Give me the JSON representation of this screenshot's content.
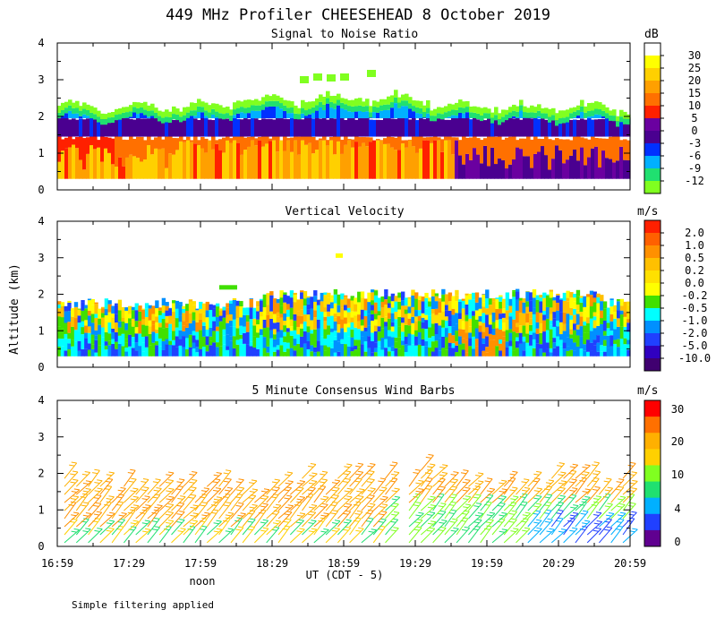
{
  "title": "449 MHz Profiler CHEESEHEAD  8 October 2019",
  "ylabel": "Altitude (km)",
  "xlabel": "UT  (CDT - 5)",
  "x_ticks": [
    "16:59",
    "17:29",
    "17:59",
    "18:29",
    "18:59",
    "19:29",
    "19:59",
    "20:29",
    "20:59"
  ],
  "noon_label": "noon",
  "footer": "Simple filtering applied",
  "chart_data": [
    {
      "type": "heatmap",
      "title": "Signal to Noise Ratio",
      "unit": "dB",
      "xlabel": "UT  (CDT - 5)",
      "ylabel": "Altitude (km)",
      "x_range": [
        "16:59",
        "20:59"
      ],
      "y_ticks": [
        "0",
        "1",
        "2",
        "3",
        "4"
      ],
      "ylim": [
        0,
        4
      ],
      "colorbar_labels": [
        "30",
        "25",
        "20",
        "15",
        "10",
        "5",
        "0",
        "-3",
        "-6",
        "-9",
        "-12"
      ],
      "colorbar_colors": [
        "#ffffff",
        "#ffff00",
        "#ffd000",
        "#ffa000",
        "#ff7000",
        "#ff2000",
        "#6a00a0",
        "#4a0090",
        "#0030ff",
        "#00b0ff",
        "#20e070",
        "#80ff20"
      ],
      "description_layers": [
        {
          "from_alt": 0.3,
          "to_alt": 1.3,
          "level": "15 to 25 dB"
        },
        {
          "from_alt": 1.3,
          "to_alt": 1.8,
          "level": "0 to 10 dB"
        },
        {
          "from_alt": 1.8,
          "to_alt": 2.2,
          "level": "-12 to -3 dB"
        }
      ]
    },
    {
      "type": "heatmap",
      "title": "Vertical Velocity",
      "unit": "m/s",
      "xlabel": "UT  (CDT - 5)",
      "ylabel": "Altitude (km)",
      "x_range": [
        "16:59",
        "20:59"
      ],
      "y_ticks": [
        "0",
        "1",
        "2",
        "3",
        "4"
      ],
      "ylim": [
        0,
        4
      ],
      "colorbar_labels": [
        "2.0",
        "1.0",
        "0.5",
        "0.2",
        "0.0",
        "-0.2",
        "-0.5",
        "-1.0",
        "-2.0",
        "-5.0",
        "-10.0"
      ],
      "colorbar_colors": [
        "#ff2000",
        "#ff6000",
        "#ff9000",
        "#ffc000",
        "#ffe000",
        "#ffff00",
        "#40e000",
        "#00ffff",
        "#0090ff",
        "#2040ff",
        "#3000c0",
        "#400070"
      ]
    },
    {
      "type": "scatter",
      "title": "5 Minute Consensus Wind Barbs",
      "unit": "m/s",
      "xlabel": "UT  (CDT - 5)",
      "ylabel": "Altitude (km)",
      "x_range": [
        "16:59",
        "20:59"
      ],
      "y_ticks": [
        "0",
        "1",
        "2",
        "3",
        "4"
      ],
      "ylim": [
        0,
        4
      ],
      "colorbar_labels": [
        "30",
        "20",
        "10",
        "4",
        "0"
      ],
      "colorbar_colors": [
        "#ff0000",
        "#ff7000",
        "#ffb000",
        "#ffd000",
        "#80ff20",
        "#20e070",
        "#00b0ff",
        "#2040ff",
        "#600090"
      ],
      "description": "Wind barbs every 5 minutes from 0.1 to about 2.0 km altitude; mostly 10-20 m/s, weaker (0-10 m/s) near the surface after 20:00 UT."
    }
  ]
}
